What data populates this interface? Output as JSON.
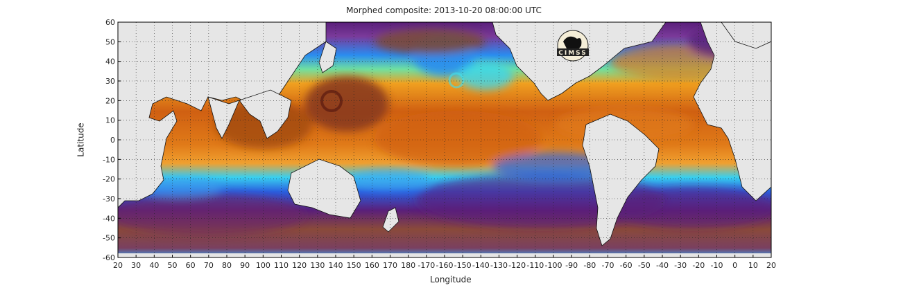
{
  "title": "Morphed composite: 2013-10-20 08:00:00 UTC",
  "chart_data": {
    "type": "heatmap",
    "title": "Morphed composite: 2013-10-20 08:00:00 UTC",
    "xlabel": "Longitude",
    "ylabel": "Latitude",
    "x_ticks": [
      "20",
      "30",
      "40",
      "50",
      "60",
      "70",
      "80",
      "90",
      "100",
      "110",
      "120",
      "130",
      "140",
      "150",
      "160",
      "170",
      "180",
      "-170",
      "-160",
      "-150",
      "-140",
      "-130",
      "-120",
      "-110",
      "-100",
      "-90",
      "-80",
      "-70",
      "-60",
      "-50",
      "-40",
      "-30",
      "-20",
      "-10",
      "0",
      "10",
      "20"
    ],
    "y_ticks": [
      "60",
      "50",
      "40",
      "30",
      "20",
      "10",
      "0",
      "-10",
      "-20",
      "-30",
      "-40",
      "-50",
      "-60"
    ],
    "xlim": [
      20,
      380
    ],
    "ylim": [
      -60,
      60
    ],
    "grid": true,
    "colormap": [
      "#5a1f7a",
      "#7a3a9a",
      "#3040c8",
      "#2a8cf0",
      "#38d6f0",
      "#70f0a0",
      "#e0e050",
      "#f0a020",
      "#e06a10",
      "#b84a10",
      "#8a3a20"
    ],
    "ocean_background": "#7a4a3a",
    "land_color": "#e6e6e6",
    "logo_text": "CIMSS"
  }
}
